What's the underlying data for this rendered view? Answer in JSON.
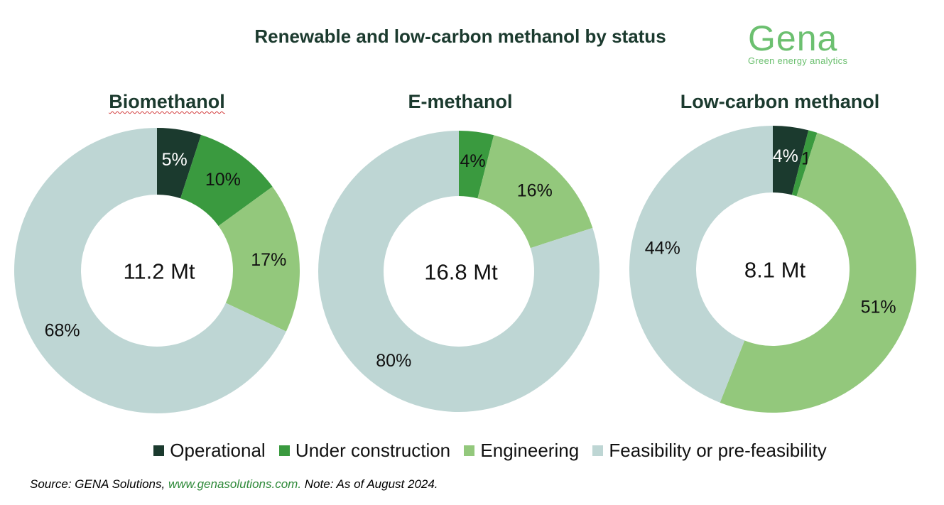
{
  "title": "Renewable and low-carbon methanol by status",
  "logo": {
    "word": "Gena",
    "tagline": "Green energy analytics"
  },
  "chart_data": [
    {
      "type": "pie",
      "variant": "donut",
      "title": "Biomethanol",
      "center_label": "11.2 Mt",
      "slices": [
        {
          "label": "Operational",
          "value": 5,
          "text": "5%"
        },
        {
          "label": "Under construction",
          "value": 10,
          "text": "10%"
        },
        {
          "label": "Engineering",
          "value": 17,
          "text": "17%"
        },
        {
          "label": "Feasibility or pre-feasibility",
          "value": 68,
          "text": "68%"
        }
      ]
    },
    {
      "type": "pie",
      "variant": "donut",
      "title": "E-methanol",
      "center_label": "16.8 Mt",
      "slices": [
        {
          "label": "Operational",
          "value": 0,
          "text": ""
        },
        {
          "label": "Under construction",
          "value": 4,
          "text": "4%"
        },
        {
          "label": "Engineering",
          "value": 16,
          "text": "16%"
        },
        {
          "label": "Feasibility or pre-feasibility",
          "value": 80,
          "text": "80%"
        }
      ]
    },
    {
      "type": "pie",
      "variant": "donut",
      "title": "Low-carbon methanol",
      "center_label": "8.1 Mt",
      "slices": [
        {
          "label": "Operational",
          "value": 4,
          "text": "4%"
        },
        {
          "label": "Under construction",
          "value": 1,
          "text": "1%"
        },
        {
          "label": "Engineering",
          "value": 51,
          "text": "51%"
        },
        {
          "label": "Feasibility or pre-feasibility",
          "value": 44,
          "text": "44%"
        }
      ]
    }
  ],
  "legend": [
    {
      "label": "Operational",
      "color": "#1b3a2e"
    },
    {
      "label": "Under construction",
      "color": "#3a9a3f"
    },
    {
      "label": "Engineering",
      "color": "#93c87c"
    },
    {
      "label": "Feasibility or pre-feasibility",
      "color": "#bed6d4"
    }
  ],
  "source": {
    "prefix": "Source: GENA Solutions, ",
    "link": "www.genasolutions.com.",
    "suffix": " Note: As of August 2024."
  }
}
